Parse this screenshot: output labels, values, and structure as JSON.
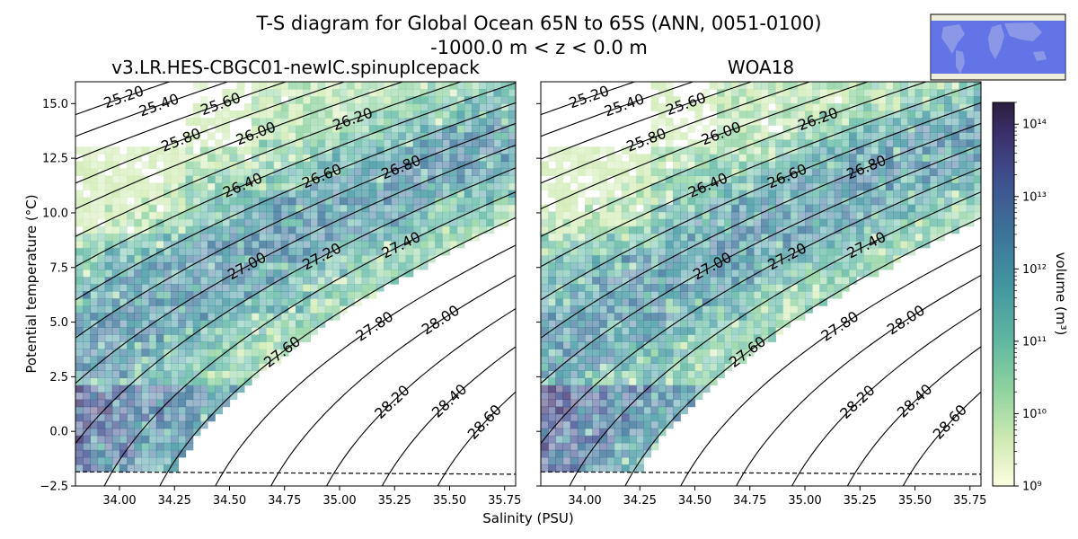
{
  "figure": {
    "title_line1": "T-S diagram for Global Ocean 65N to 65S (ANN, 0051-0100)",
    "title_line2": "-1000.0 m < z < 0.0 m",
    "xlabel": "Salinity (PSU)",
    "ylabel": "Potential temperature (°C)",
    "colorbar_label": "volume (m³)"
  },
  "chart_data": [
    {
      "type": "heatmap",
      "panel": "left",
      "title": "v3.LR.HES-CBGC01-newIC.spinupIcepack",
      "xlim": [
        33.8,
        35.8
      ],
      "ylim": [
        -2.5,
        16.0
      ],
      "xticks": [
        "34.00",
        "34.25",
        "34.50",
        "34.75",
        "35.00",
        "35.25",
        "35.50",
        "35.75"
      ],
      "yticks": [
        "−2.5",
        "0.0",
        "2.5",
        "5.0",
        "7.5",
        "10.0",
        "12.5",
        "15.0"
      ],
      "freezing_line": [
        [
          33.8,
          -1.85
        ],
        [
          35.8,
          -1.96
        ]
      ],
      "density_contours": [
        "25.20",
        "25.40",
        "25.60",
        "25.80",
        "26.00",
        "26.20",
        "26.40",
        "26.60",
        "26.80",
        "27.00",
        "27.20",
        "27.40",
        "27.60",
        "27.80",
        "28.00",
        "28.20",
        "28.40",
        "28.60"
      ]
    },
    {
      "type": "heatmap",
      "panel": "right",
      "title": "WOA18",
      "xlim": [
        33.8,
        35.8
      ],
      "ylim": [
        -2.5,
        16.0
      ],
      "xticks": [
        "34.00",
        "34.25",
        "34.50",
        "34.75",
        "35.00",
        "35.25",
        "35.50",
        "35.75"
      ],
      "freezing_line": [
        [
          33.8,
          -1.85
        ],
        [
          35.8,
          -1.96
        ]
      ],
      "density_contours": [
        "25.20",
        "25.40",
        "25.60",
        "25.80",
        "26.00",
        "26.20",
        "26.40",
        "26.60",
        "26.80",
        "27.00",
        "27.20",
        "27.40",
        "27.60",
        "27.80",
        "28.00",
        "28.20",
        "28.40",
        "28.60"
      ]
    }
  ],
  "colorbar": {
    "scale": "log",
    "range": [
      1000000000.0,
      200000000000000.0
    ],
    "ticks": [
      {
        "value": 9,
        "label": "10⁹"
      },
      {
        "value": 10,
        "label": "10¹⁰"
      },
      {
        "value": 11,
        "label": "10¹¹"
      },
      {
        "value": 12,
        "label": "10¹²"
      },
      {
        "value": 13,
        "label": "10¹³"
      },
      {
        "value": 14,
        "label": "10¹⁴"
      }
    ],
    "colors": [
      "#fdfde1",
      "#cfeab2",
      "#8fd2a0",
      "#5fb7a1",
      "#4296a0",
      "#3c7399",
      "#3f4f8e",
      "#3b2f6b",
      "#2c1e3d"
    ]
  },
  "map_inset": {
    "region_color": "#4a5ee8",
    "land_color": "#eeeedd"
  }
}
